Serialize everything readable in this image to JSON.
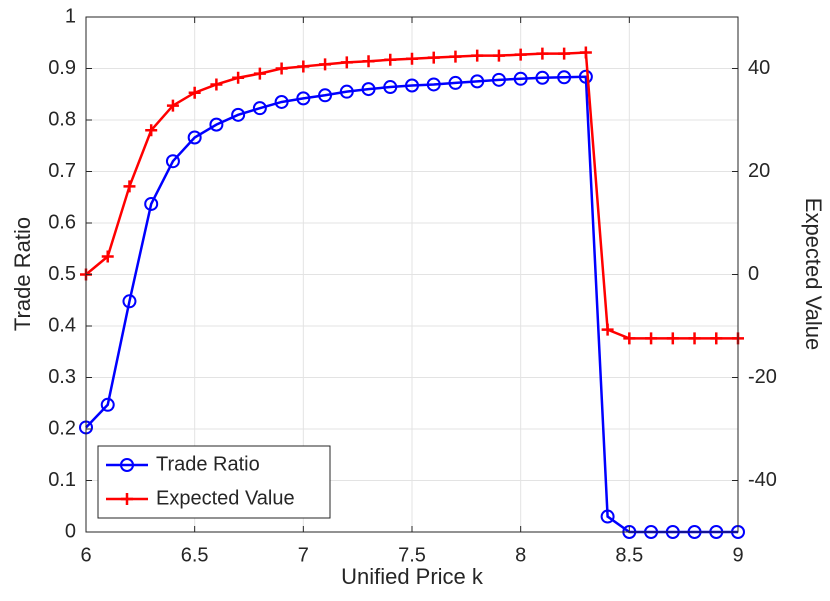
{
  "chart_data": {
    "type": "line",
    "xlabel": "Unified Price k",
    "ylabel": "Trade Ratio",
    "y2label": "Expected Value",
    "x": [
      6,
      6.1,
      6.2,
      6.3,
      6.4,
      6.5,
      6.6,
      6.7,
      6.8,
      6.9,
      7,
      7.1,
      7.2,
      7.3,
      7.4,
      7.5,
      7.6,
      7.7,
      7.8,
      7.9,
      8,
      8.1,
      8.2,
      8.3,
      8.4,
      8.5,
      8.6,
      8.7,
      8.8,
      8.9,
      9
    ],
    "series": [
      {
        "name": "Trade Ratio",
        "color": "#0000ff",
        "marker": "o",
        "axis": "y",
        "values": [
          0.203,
          0.247,
          0.448,
          0.637,
          0.72,
          0.766,
          0.791,
          0.81,
          0.823,
          0.835,
          0.842,
          0.848,
          0.855,
          0.86,
          0.864,
          0.867,
          0.869,
          0.872,
          0.875,
          0.878,
          0.88,
          0.882,
          0.883,
          0.884,
          0.03,
          0,
          0,
          0,
          0,
          0,
          0
        ]
      },
      {
        "name": "Expected Value",
        "color": "#ff0000",
        "marker": "+",
        "axis": "y2",
        "values": [
          0,
          3.5,
          17.1,
          28,
          32.8,
          35.3,
          36.9,
          38.2,
          39,
          40,
          40.4,
          40.8,
          41.2,
          41.4,
          41.7,
          41.9,
          42.1,
          42.3,
          42.5,
          42.5,
          42.7,
          42.9,
          42.9,
          43.1,
          -10.7,
          -12.4,
          -12.4,
          -12.4,
          -12.4,
          -12.4,
          -12.4
        ]
      }
    ],
    "xlim": [
      6,
      9
    ],
    "xticks": [
      6,
      6.5,
      7,
      7.5,
      8,
      8.5,
      9
    ],
    "ylim": [
      0,
      1
    ],
    "yticks": [
      0,
      0.1,
      0.2,
      0.3,
      0.4,
      0.5,
      0.6,
      0.7,
      0.8,
      0.9,
      1
    ],
    "y2lim": [
      -50,
      50
    ],
    "y2ticks": [
      -40,
      -20,
      0,
      20,
      40
    ],
    "grid": true,
    "legend": "lower left"
  }
}
